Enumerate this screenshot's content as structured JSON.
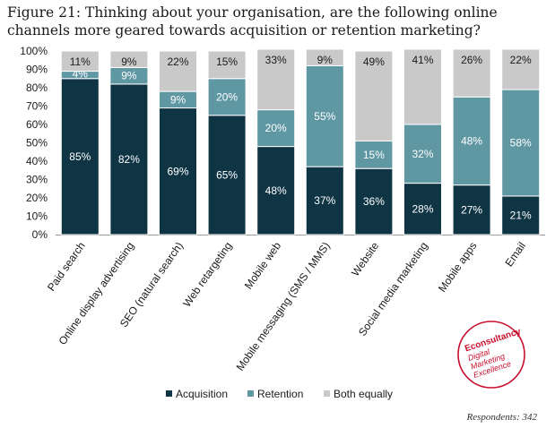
{
  "title": "Figure 21: Thinking about your organisation, are the following online channels more geared towards acquisition or retention marketing?",
  "footnote": "Respondents: 342",
  "logo": {
    "brand": "Econsultancy",
    "tagline_lines": [
      "Digital",
      "Marketing",
      "Excellence"
    ]
  },
  "chart_data": {
    "type": "bar",
    "stacked": true,
    "categories": [
      "Paid search",
      "Online display advertising",
      "SEO (natural search)",
      "Web retargeting",
      "Mobile web",
      "Mobile messaging (SMS / MMS)",
      "Website",
      "Social media marketing",
      "Mobile apps",
      "Email"
    ],
    "series": [
      {
        "name": "Acquisition",
        "color": "#0f3544",
        "values": [
          85,
          82,
          69,
          65,
          48,
          37,
          36,
          28,
          27,
          21
        ]
      },
      {
        "name": "Retention",
        "color": "#5f97a3",
        "values": [
          4,
          9,
          9,
          20,
          20,
          55,
          15,
          32,
          48,
          58
        ]
      },
      {
        "name": "Both equally",
        "color": "#c9c9c9",
        "values": [
          11,
          9,
          22,
          15,
          33,
          9,
          49,
          41,
          26,
          22
        ]
      }
    ],
    "data_labels": [
      [
        "85%",
        "82%",
        "69%",
        "65%",
        "48%",
        "37%",
        "36%",
        "28%",
        "27%",
        "21%"
      ],
      [
        "4%",
        "9%",
        "9%",
        "20%",
        "20%",
        "55%",
        "15%",
        "32%",
        "48%",
        "58%"
      ],
      [
        "11%",
        "9%",
        "22%",
        "15%",
        "33%",
        "9%",
        "49%",
        "41%",
        "26%",
        "22%"
      ]
    ],
    "yticks": [
      "0%",
      "10%",
      "20%",
      "30%",
      "40%",
      "50%",
      "60%",
      "70%",
      "80%",
      "90%",
      "100%"
    ],
    "ylim": [
      0,
      100
    ],
    "grid": false,
    "legend_position": "bottom"
  }
}
